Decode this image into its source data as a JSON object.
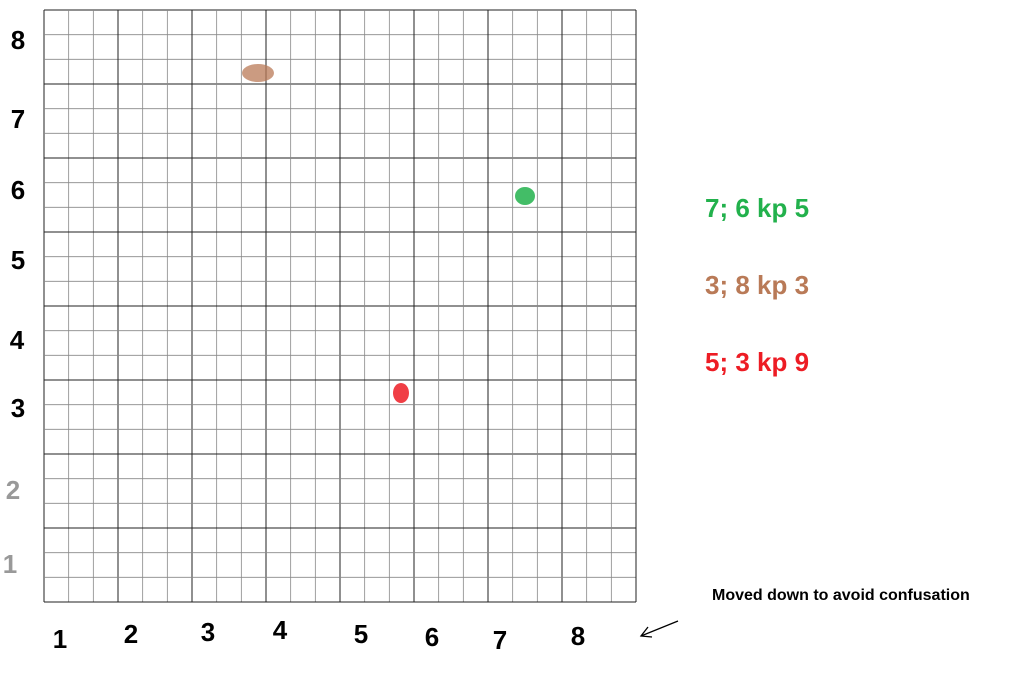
{
  "row_labels": [
    "8",
    "7",
    "6",
    "5",
    "4",
    "3",
    "2",
    "1"
  ],
  "column_labels": [
    "1",
    "2",
    "3",
    "4",
    "5",
    "6",
    "7",
    "8"
  ],
  "legend": [
    "7; 6 kp 5",
    "3; 8 kp 3",
    "5; 3 kp 9"
  ],
  "note": "Moved down to avoid confusation"
}
